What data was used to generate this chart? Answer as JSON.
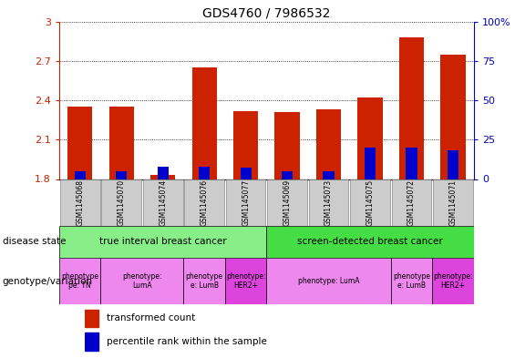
{
  "title": "GDS4760 / 7986532",
  "samples": [
    "GSM1145068",
    "GSM1145070",
    "GSM1145074",
    "GSM1145076",
    "GSM1145077",
    "GSM1145069",
    "GSM1145073",
    "GSM1145075",
    "GSM1145072",
    "GSM1145071"
  ],
  "transformed_count": [
    2.35,
    2.35,
    1.83,
    2.65,
    2.32,
    2.31,
    2.33,
    2.42,
    2.88,
    2.75
  ],
  "percentile_rank": [
    5,
    5,
    8,
    8,
    7,
    5,
    5,
    20,
    20,
    18
  ],
  "ylim_left": [
    1.8,
    3.0
  ],
  "ylim_right": [
    0,
    100
  ],
  "yticks_left": [
    1.8,
    2.1,
    2.4,
    2.7,
    3.0
  ],
  "ytick_labels_left": [
    "1.8",
    "2.1",
    "2.4",
    "2.7",
    "3"
  ],
  "yticks_right": [
    0,
    25,
    50,
    75,
    100
  ],
  "ytick_labels_right": [
    "0",
    "25",
    "50",
    "75",
    "100%"
  ],
  "bar_color_red": "#cc2200",
  "bar_color_blue": "#0000cc",
  "bar_width": 0.6,
  "disease_state_groups": [
    {
      "label": "true interval breast cancer",
      "start": 0,
      "end": 4,
      "color": "#88ee88"
    },
    {
      "label": "screen-detected breast cancer",
      "start": 5,
      "end": 9,
      "color": "#44dd44"
    }
  ],
  "genotype_groups": [
    {
      "label": "phenotype\npe: TN",
      "start": 0,
      "end": 0,
      "color": "#ee88ee"
    },
    {
      "label": "phenotype:\nLumA",
      "start": 1,
      "end": 2,
      "color": "#ee88ee"
    },
    {
      "label": "phenotype\ne: LumB",
      "start": 3,
      "end": 3,
      "color": "#ee88ee"
    },
    {
      "label": "phenotype:\nHER2+",
      "start": 4,
      "end": 4,
      "color": "#dd44dd"
    },
    {
      "label": "phenotype: LumA",
      "start": 5,
      "end": 7,
      "color": "#ee88ee"
    },
    {
      "label": "phenotype\ne: LumB",
      "start": 8,
      "end": 8,
      "color": "#ee88ee"
    },
    {
      "label": "phenotype:\nHER2+",
      "start": 9,
      "end": 9,
      "color": "#dd44dd"
    }
  ],
  "legend_items": [
    {
      "label": "transformed count",
      "color": "#cc2200"
    },
    {
      "label": "percentile rank within the sample",
      "color": "#0000cc"
    }
  ],
  "axis_color_left": "#cc2200",
  "axis_color_right": "#0000cc",
  "sample_bg_color": "#cccccc",
  "sample_border_color": "#888888"
}
